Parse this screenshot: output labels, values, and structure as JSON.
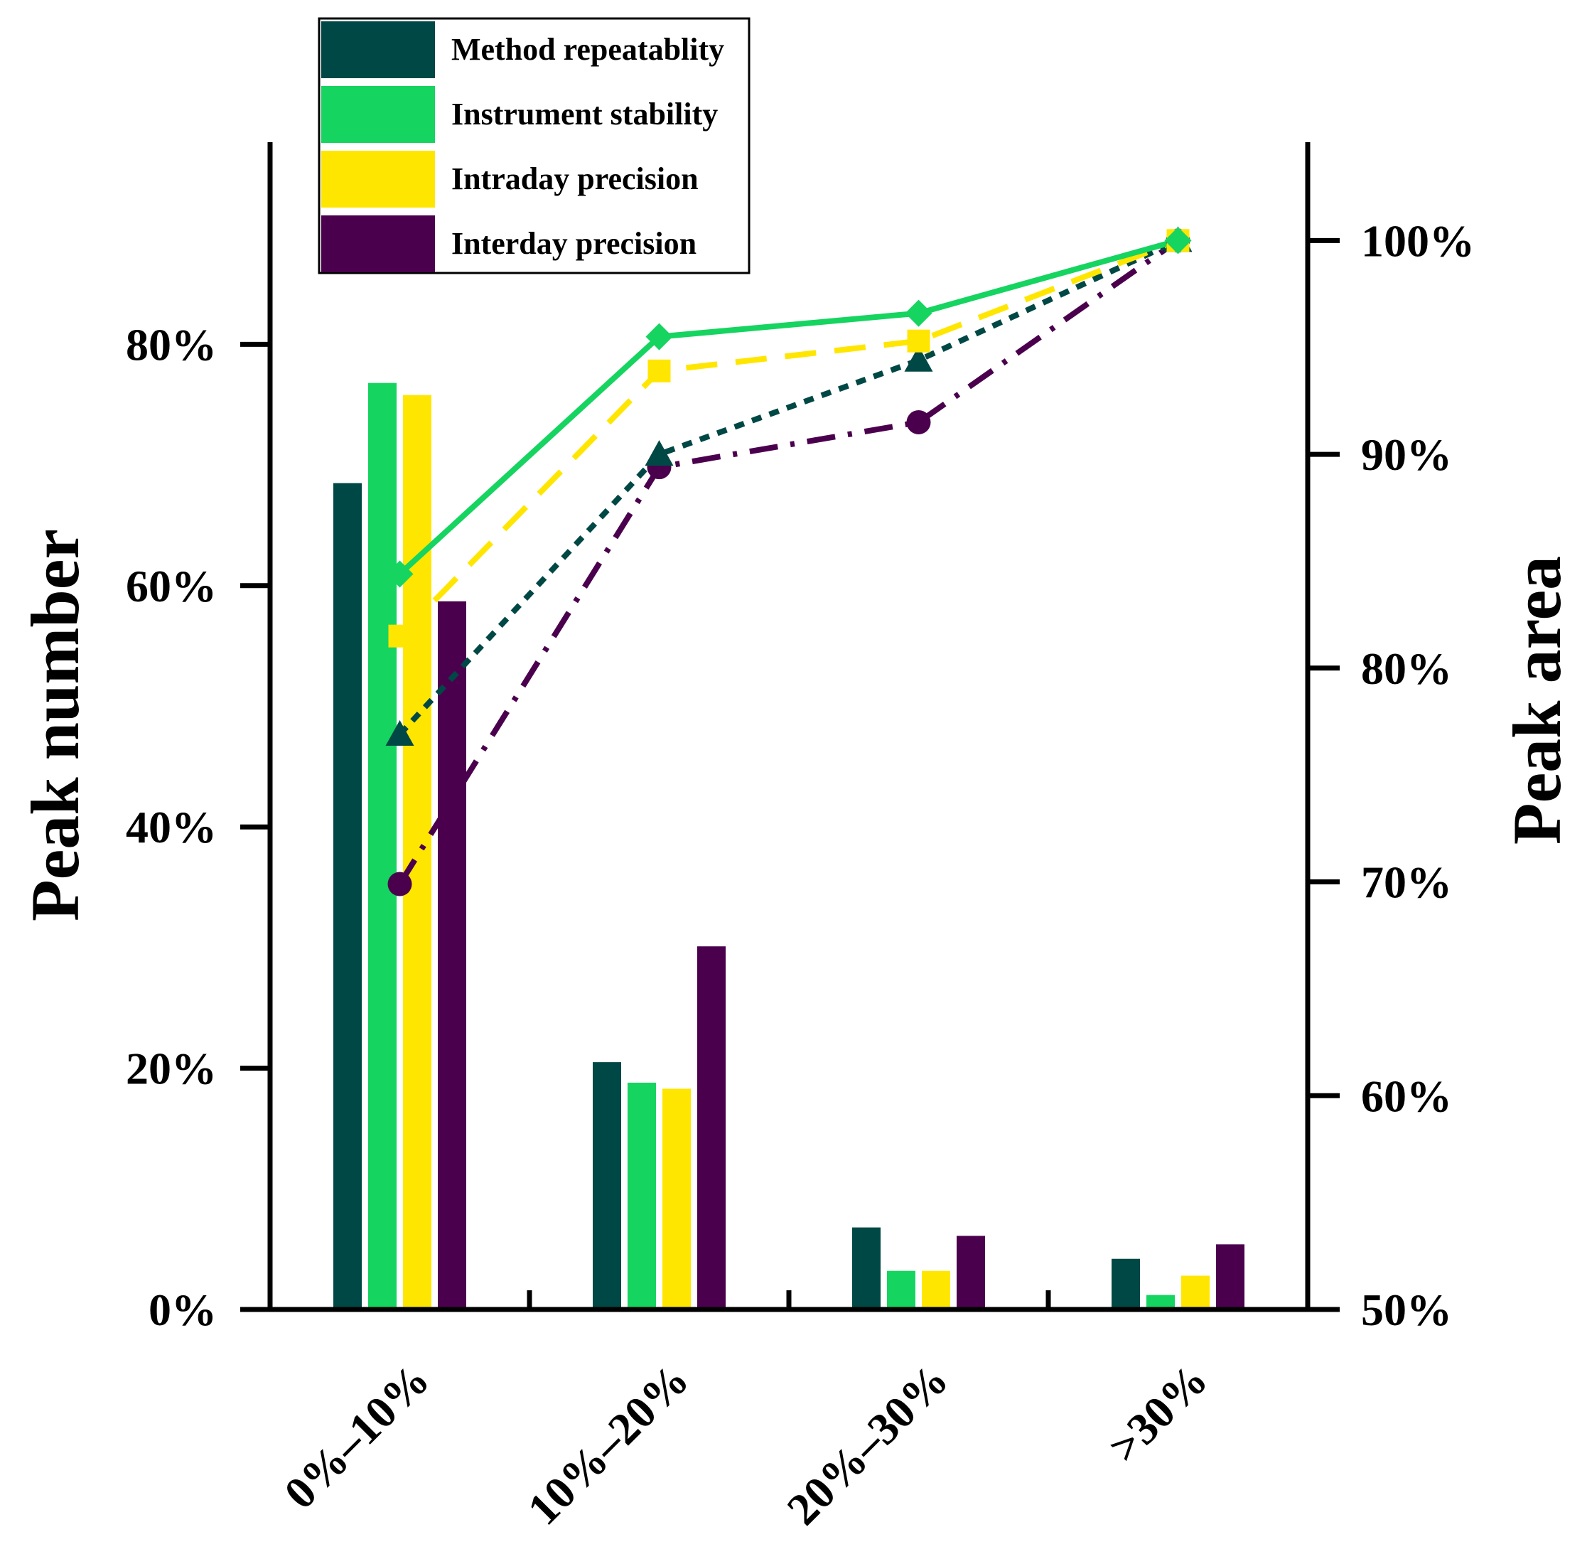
{
  "chart_data": {
    "type": "bar",
    "categories": [
      "0%–10%",
      "10%–20%",
      "20%–30%",
      ">30%"
    ],
    "y_left": {
      "label": "Peak number",
      "range": [
        0,
        100
      ],
      "ticks": [
        0,
        20,
        40,
        60,
        80
      ],
      "tick_labels": [
        "0%",
        "20%",
        "40%",
        "60%",
        "80%"
      ]
    },
    "y_right": {
      "label": "Peak area",
      "range": [
        50,
        104.6
      ],
      "ticks": [
        50,
        60,
        70,
        80,
        90,
        100
      ],
      "tick_labels": [
        "50%",
        "60%",
        "70%",
        "80%",
        "90%",
        "100%"
      ]
    },
    "series": [
      {
        "name": "Method repeatablity",
        "color": "#004845",
        "bar_values": [
          68.5,
          20.5,
          6.8,
          4.2
        ],
        "line_values": [
          76.9,
          90.0,
          94.4,
          100
        ],
        "line_style": "dotted",
        "marker": "triangle"
      },
      {
        "name": "Instrument stability",
        "color": "#16d460",
        "bar_values": [
          76.8,
          18.8,
          3.2,
          1.2
        ],
        "line_values": [
          84.4,
          95.5,
          96.6,
          100
        ],
        "line_style": "solid",
        "marker": "diamond"
      },
      {
        "name": "Intraday precision",
        "color": "#ffe600",
        "bar_values": [
          75.8,
          18.3,
          3.2,
          2.8
        ],
        "line_values": [
          81.5,
          93.9,
          95.3,
          100
        ],
        "line_style": "dashed",
        "marker": "square"
      },
      {
        "name": "Interday precision",
        "color": "#4b004e",
        "bar_values": [
          58.7,
          30.1,
          6.1,
          5.4
        ],
        "line_values": [
          69.9,
          89.4,
          91.5,
          100
        ],
        "line_style": "dash-dot",
        "marker": "circle"
      }
    ],
    "legend_position": "top-left"
  }
}
